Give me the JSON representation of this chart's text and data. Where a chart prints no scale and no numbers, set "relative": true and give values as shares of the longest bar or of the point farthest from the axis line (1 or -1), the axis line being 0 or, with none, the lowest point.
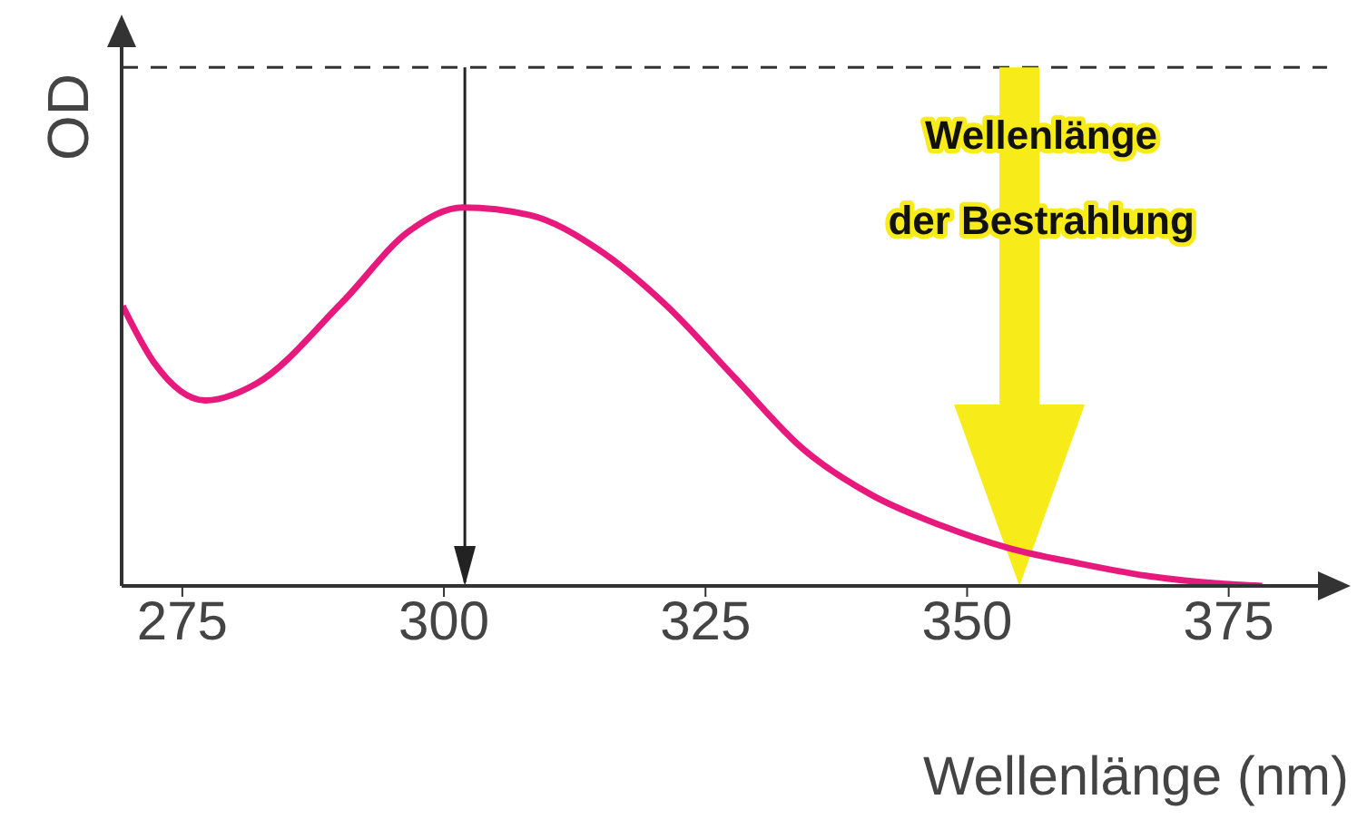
{
  "chart_data": {
    "type": "line",
    "relative": true,
    "xlabel": "Wellenlänge (nm)",
    "ylabel": "OD",
    "xlim": [
      269.2,
      384.4
    ],
    "xticks": [
      275,
      300,
      325,
      350,
      375
    ],
    "marker": "none",
    "series": [
      {
        "color": "#e8197d",
        "x": [
          269.3,
          272.3,
          277.2,
          282.1,
          290.3,
          296.8,
          301.8,
          308.2,
          314.7,
          321.3,
          327.8,
          334.4,
          340.9,
          347.5,
          354,
          360.6,
          367.1,
          373.7,
          378.2
        ],
        "values": [
          0.74,
          0.59,
          0.49,
          0.535,
          0.75,
          0.94,
          1.0,
          0.98,
          0.89,
          0.74,
          0.55,
          0.36,
          0.24,
          0.16,
          0.1,
          0.06,
          0.027,
          0.007,
          0
        ]
      }
    ],
    "ref_lines": [
      {
        "axis": "y",
        "value": 1.37,
        "color": "#333333",
        "line_style": "dashed"
      },
      {
        "axis": "x",
        "value": 302,
        "color": "#222222",
        "line_style": "solid"
      },
      {
        "axis": "x",
        "value": 355,
        "color": "#f7ec1a",
        "line_style": "solid",
        "label": "Wellenlänge der Bestrahlung"
      }
    ]
  }
}
